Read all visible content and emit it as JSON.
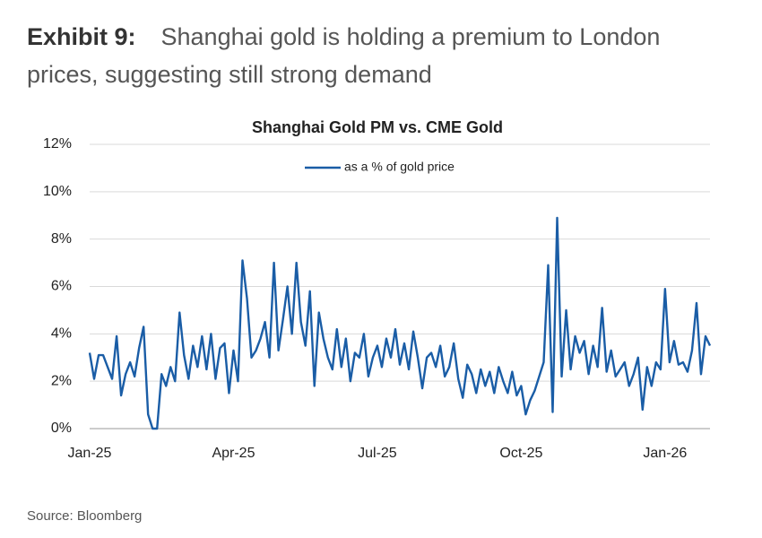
{
  "chart_data": {
    "type": "line",
    "exhibit_label": "Exhibit 9:",
    "headline": "Shanghai gold is holding a premium to London prices, suggesting still strong demand",
    "title": "Shanghai Gold PM vs. CME Gold",
    "source": "Source: Bloomberg",
    "categories": [
      "Jan-25",
      null,
      null,
      null,
      null,
      null,
      null,
      null,
      null,
      null,
      null,
      null,
      null,
      null,
      null,
      null,
      null,
      null,
      null,
      null,
      null,
      null,
      null,
      null,
      null,
      null,
      null,
      null,
      null,
      null,
      null,
      null,
      "Apr-25",
      null,
      null,
      null,
      null,
      null,
      null,
      null,
      null,
      null,
      null,
      null,
      null,
      null,
      null,
      null,
      null,
      null,
      null,
      null,
      null,
      null,
      null,
      null,
      null,
      null,
      null,
      null,
      null,
      null,
      null,
      null,
      "Jul-25",
      null,
      null,
      null,
      null,
      null,
      null,
      null,
      null,
      null,
      null,
      null,
      null,
      null,
      null,
      null,
      null,
      null,
      null,
      null,
      null,
      null,
      null,
      null,
      null,
      null,
      null,
      null,
      null,
      null,
      null,
      null,
      "Oct-25",
      null,
      null,
      null,
      null,
      null,
      null,
      null,
      null,
      null,
      null,
      null,
      null,
      null,
      null,
      null,
      null,
      null,
      null,
      null,
      null,
      null,
      null,
      null,
      null,
      null,
      null,
      null,
      null,
      null,
      null,
      null,
      "Jan-26",
      null,
      null,
      null,
      null,
      null,
      null,
      null,
      null,
      null,
      null
    ],
    "series": [
      {
        "name": "as a % of gold price",
        "color": "#1a5da6",
        "values": [
          3.2,
          2.1,
          3.1,
          3.1,
          2.6,
          2.1,
          3.9,
          1.4,
          2.3,
          2.8,
          2.2,
          3.4,
          4.3,
          0.6,
          0,
          0,
          2.3,
          1.8,
          2.6,
          2.0,
          4.9,
          3.1,
          2.1,
          3.5,
          2.6,
          3.9,
          2.5,
          4.0,
          2.1,
          3.4,
          3.6,
          1.5,
          3.3,
          2.0,
          7.1,
          5.5,
          3.0,
          3.3,
          3.8,
          4.5,
          3.0,
          7.0,
          3.3,
          4.6,
          6.0,
          4.0,
          7.0,
          4.5,
          3.5,
          5.8,
          1.8,
          4.9,
          3.8,
          3.0,
          2.5,
          4.2,
          2.6,
          3.8,
          2.0,
          3.2,
          3.0,
          4.0,
          2.2,
          3.0,
          3.5,
          2.6,
          3.8,
          3.0,
          4.2,
          2.7,
          3.6,
          2.5,
          4.1,
          3.0,
          1.7,
          3.0,
          3.2,
          2.6,
          3.5,
          2.2,
          2.6,
          3.6,
          2.1,
          1.3,
          2.7,
          2.3,
          1.5,
          2.5,
          1.8,
          2.4,
          1.5,
          2.6,
          2.0,
          1.5,
          2.4,
          1.4,
          1.8,
          0.6,
          1.2,
          1.6,
          2.2,
          2.8,
          6.9,
          0.7,
          8.9,
          2.2,
          5.0,
          2.5,
          3.9,
          3.2,
          3.7,
          2.3,
          3.5,
          2.6,
          5.1,
          2.4,
          3.3,
          2.2,
          2.5,
          2.8,
          1.8,
          2.3,
          3.0,
          0.8,
          2.6,
          1.8,
          2.8,
          2.5,
          5.9,
          2.8,
          3.7,
          2.7,
          2.8,
          2.4,
          3.3,
          5.3,
          2.3,
          3.9,
          3.5
        ]
      }
    ],
    "ylim": [
      0,
      12
    ],
    "yticks": [
      {
        "value": 0,
        "label": "0%"
      },
      {
        "value": 2,
        "label": "2%"
      },
      {
        "value": 4,
        "label": "4%"
      },
      {
        "value": 6,
        "label": "6%"
      },
      {
        "value": 8,
        "label": "8%"
      },
      {
        "value": 10,
        "label": "10%"
      },
      {
        "value": 12,
        "label": "12%"
      }
    ],
    "grid": true,
    "legend": "top"
  }
}
